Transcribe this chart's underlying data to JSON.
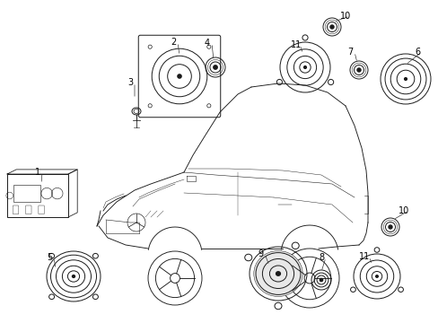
{
  "bg_color": "#ffffff",
  "fig_width": 4.89,
  "fig_height": 3.6,
  "dpi": 100,
  "car": {
    "color": "#1a1a1a",
    "lw": 0.7
  },
  "components": {
    "lw": 0.7,
    "color": "#1a1a1a"
  },
  "label_fontsize": 7.0,
  "label_color": "#000000",
  "line_color": "#333333"
}
